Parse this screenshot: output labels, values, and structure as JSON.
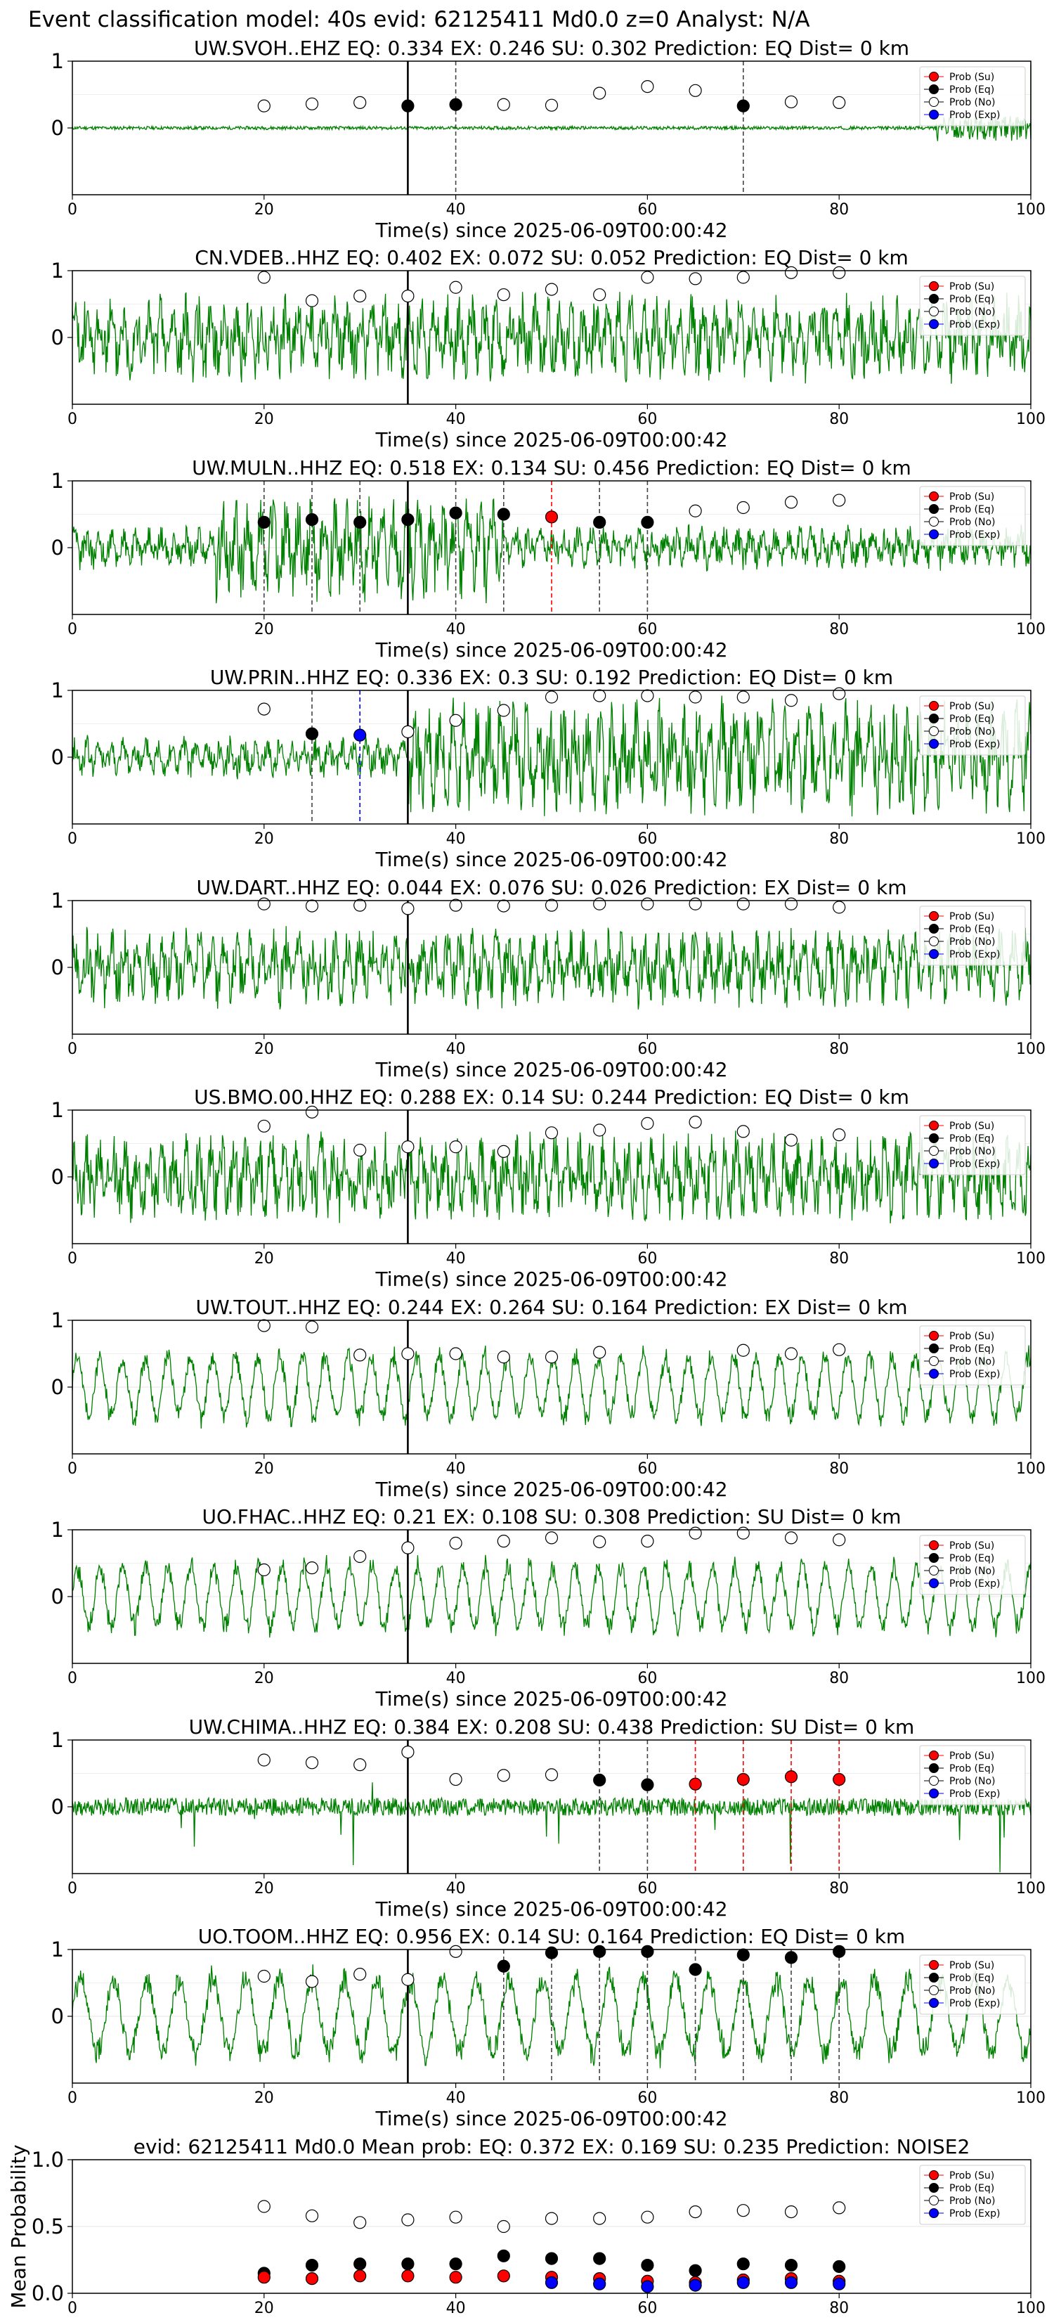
{
  "figure_title": "Event classification model: 40s evid: 62125411 Md0.0 z=0 Analyst: N/A",
  "legend": [
    {
      "label": "Prob (Su)",
      "color": "#ff0000",
      "hollow": false
    },
    {
      "label": "Prob (Eq)",
      "color": "#000000",
      "hollow": false
    },
    {
      "label": "Prob (No)",
      "color": "#ffffff",
      "hollow": true
    },
    {
      "label": "Prob (Exp)",
      "color": "#0000ff",
      "hollow": false
    }
  ],
  "colors": {
    "waveform": "#008000",
    "su_line": "#ff0000",
    "eq_line": "#000000",
    "exp_line": "#0000ff",
    "marker_edge": "#000000"
  },
  "chart_data": [
    {
      "type": "line",
      "title": "UW.SVOH..EHZ   EQ: 0.334  EX: 0.246  SU: 0.302   Prediction: EQ    Dist= 0 km",
      "xlabel": "Time(s) since 2025-06-09T00:00:42",
      "ylabel": "",
      "xlim": [
        0,
        100
      ],
      "ylim": [
        -1,
        1
      ],
      "xticks": [
        0,
        20,
        40,
        60,
        80,
        100
      ],
      "yticks": [
        0,
        1
      ],
      "grid": "y",
      "legend": "right",
      "pick_time": 35,
      "waveform": {
        "amp": 0.05,
        "seed": 11,
        "style": "quiet",
        "end_spike": true
      },
      "eq_lines": [
        40,
        70
      ],
      "su_lines": [],
      "exp_lines": [],
      "no_points": [
        [
          20,
          0.33
        ],
        [
          25,
          0.36
        ],
        [
          30,
          0.38
        ],
        [
          45,
          0.35
        ],
        [
          50,
          0.34
        ],
        [
          55,
          0.52
        ],
        [
          60,
          0.62
        ],
        [
          65,
          0.56
        ],
        [
          75,
          0.39
        ],
        [
          80,
          0.38
        ]
      ],
      "eq_points": [
        [
          35,
          0.33
        ],
        [
          40,
          0.35
        ],
        [
          70,
          0.33
        ]
      ],
      "su_points": [],
      "exp_points": []
    },
    {
      "type": "line",
      "title": "CN.VDEB..HHZ   EQ: 0.402  EX: 0.072  SU: 0.052   Prediction: EQ    Dist= 0 km",
      "xlabel": "Time(s) since 2025-06-09T00:00:42",
      "ylabel": "",
      "xlim": [
        0,
        100
      ],
      "ylim": [
        -1,
        1
      ],
      "xticks": [
        0,
        20,
        40,
        60,
        80,
        100
      ],
      "yticks": [
        0,
        1
      ],
      "grid": "y",
      "legend": "right",
      "pick_time": 35,
      "waveform": {
        "amp": 0.5,
        "seed": 23,
        "style": "dense"
      },
      "eq_lines": [],
      "su_lines": [],
      "exp_lines": [],
      "no_points": [
        [
          20,
          0.9
        ],
        [
          25,
          0.55
        ],
        [
          30,
          0.62
        ],
        [
          35,
          0.62
        ],
        [
          40,
          0.75
        ],
        [
          45,
          0.64
        ],
        [
          50,
          0.72
        ],
        [
          55,
          0.64
        ],
        [
          60,
          0.9
        ],
        [
          65,
          0.88
        ],
        [
          70,
          0.9
        ],
        [
          75,
          0.97
        ],
        [
          80,
          0.97
        ]
      ],
      "eq_points": [],
      "su_points": [],
      "exp_points": []
    },
    {
      "type": "line",
      "title": "UW.MULN..HHZ   EQ: 0.518  EX: 0.134  SU: 0.456   Prediction: EQ    Dist= 0 km",
      "xlabel": "Time(s) since 2025-06-09T00:00:42",
      "ylabel": "",
      "xlim": [
        0,
        100
      ],
      "ylim": [
        -1,
        1
      ],
      "xticks": [
        0,
        20,
        40,
        60,
        80,
        100
      ],
      "yticks": [
        0,
        1
      ],
      "grid": "y",
      "legend": "right",
      "pick_time": 35,
      "waveform": {
        "amp": 0.25,
        "seed": 37,
        "style": "burst"
      },
      "eq_lines": [
        20,
        25,
        30,
        35,
        40,
        45,
        55,
        60
      ],
      "su_lines": [
        50
      ],
      "exp_lines": [],
      "no_points": [
        [
          65,
          0.55
        ],
        [
          70,
          0.6
        ],
        [
          75,
          0.68
        ],
        [
          80,
          0.71
        ]
      ],
      "eq_points": [
        [
          20,
          0.38
        ],
        [
          25,
          0.42
        ],
        [
          30,
          0.38
        ],
        [
          35,
          0.42
        ],
        [
          40,
          0.52
        ],
        [
          45,
          0.5
        ],
        [
          55,
          0.38
        ],
        [
          60,
          0.38
        ]
      ],
      "su_points": [
        [
          50,
          0.46
        ]
      ],
      "exp_points": []
    },
    {
      "type": "line",
      "title": "UW.PRIN..HHZ   EQ: 0.336  EX: 0.3  SU: 0.192   Prediction: EQ    Dist= 0 km",
      "xlabel": "Time(s) since 2025-06-09T00:00:42",
      "ylabel": "",
      "xlim": [
        0,
        100
      ],
      "ylim": [
        -1,
        1
      ],
      "xticks": [
        0,
        20,
        40,
        60,
        80,
        100
      ],
      "yticks": [
        0,
        1
      ],
      "grid": "y",
      "legend": "right",
      "pick_time": 35,
      "waveform": {
        "amp": 0.3,
        "seed": 41,
        "style": "grow"
      },
      "eq_lines": [
        25
      ],
      "su_lines": [],
      "exp_lines": [
        30
      ],
      "no_points": [
        [
          20,
          0.72
        ],
        [
          35,
          0.38
        ],
        [
          40,
          0.55
        ],
        [
          45,
          0.7
        ],
        [
          50,
          0.9
        ],
        [
          55,
          0.92
        ],
        [
          60,
          0.92
        ],
        [
          65,
          0.9
        ],
        [
          70,
          0.9
        ],
        [
          75,
          0.85
        ],
        [
          80,
          0.95
        ]
      ],
      "eq_points": [
        [
          25,
          0.35
        ]
      ],
      "su_points": [],
      "exp_points": [
        [
          30,
          0.33
        ]
      ]
    },
    {
      "type": "line",
      "title": "UW.DART..HHZ   EQ: 0.044  EX: 0.076  SU: 0.026   Prediction: EX    Dist= 0 km",
      "xlabel": "Time(s) since 2025-06-09T00:00:42",
      "ylabel": "",
      "xlim": [
        0,
        100
      ],
      "ylim": [
        -1,
        1
      ],
      "xticks": [
        0,
        20,
        40,
        60,
        80,
        100
      ],
      "yticks": [
        0,
        1
      ],
      "grid": "y",
      "legend": "right",
      "pick_time": 35,
      "waveform": {
        "amp": 0.45,
        "seed": 53,
        "style": "noise"
      },
      "eq_lines": [],
      "su_lines": [],
      "exp_lines": [],
      "no_points": [
        [
          20,
          0.95
        ],
        [
          25,
          0.92
        ],
        [
          30,
          0.93
        ],
        [
          35,
          0.88
        ],
        [
          40,
          0.93
        ],
        [
          45,
          0.92
        ],
        [
          50,
          0.93
        ],
        [
          55,
          0.95
        ],
        [
          60,
          0.95
        ],
        [
          65,
          0.95
        ],
        [
          70,
          0.95
        ],
        [
          75,
          0.95
        ],
        [
          80,
          0.9
        ]
      ],
      "eq_points": [],
      "su_points": [],
      "exp_points": []
    },
    {
      "type": "line",
      "title": "US.BMO.00.HHZ   EQ: 0.288  EX: 0.14  SU: 0.244   Prediction: EQ    Dist= 0 km",
      "xlabel": "Time(s) since 2025-06-09T00:00:42",
      "ylabel": "",
      "xlim": [
        0,
        100
      ],
      "ylim": [
        -1,
        1
      ],
      "xticks": [
        0,
        20,
        40,
        60,
        80,
        100
      ],
      "yticks": [
        0,
        1
      ],
      "grid": "y",
      "legend": "right",
      "pick_time": 35,
      "waveform": {
        "amp": 0.5,
        "seed": 67,
        "style": "dense"
      },
      "eq_lines": [],
      "su_lines": [],
      "exp_lines": [],
      "no_points": [
        [
          20,
          0.76
        ],
        [
          25,
          0.97
        ],
        [
          30,
          0.4
        ],
        [
          35,
          0.45
        ],
        [
          40,
          0.45
        ],
        [
          45,
          0.38
        ],
        [
          50,
          0.66
        ],
        [
          55,
          0.7
        ],
        [
          60,
          0.8
        ],
        [
          65,
          0.82
        ],
        [
          70,
          0.68
        ],
        [
          75,
          0.55
        ],
        [
          80,
          0.63
        ]
      ],
      "eq_points": [],
      "su_points": [],
      "exp_points": []
    },
    {
      "type": "line",
      "title": "UW.TOUT..HHZ   EQ: 0.244  EX: 0.264  SU: 0.164   Prediction: EX    Dist= 0 km",
      "xlabel": "Time(s) since 2025-06-09T00:00:42",
      "ylabel": "",
      "xlim": [
        0,
        100
      ],
      "ylim": [
        -1,
        1
      ],
      "xticks": [
        0,
        20,
        40,
        60,
        80,
        100
      ],
      "yticks": [
        0,
        1
      ],
      "grid": "y",
      "legend": "right",
      "pick_time": 35,
      "waveform": {
        "amp": 0.45,
        "seed": 71,
        "style": "wavy"
      },
      "eq_lines": [],
      "su_lines": [],
      "exp_lines": [],
      "no_points": [
        [
          20,
          0.92
        ],
        [
          25,
          0.9
        ],
        [
          30,
          0.48
        ],
        [
          35,
          0.5
        ],
        [
          40,
          0.5
        ],
        [
          45,
          0.45
        ],
        [
          50,
          0.45
        ],
        [
          55,
          0.52
        ],
        [
          70,
          0.55
        ],
        [
          75,
          0.5
        ],
        [
          80,
          0.56
        ]
      ],
      "eq_points": [],
      "su_points": [],
      "exp_points": []
    },
    {
      "type": "line",
      "title": "UO.FHAC..HHZ   EQ: 0.21  EX: 0.108  SU: 0.308    Prediction: SU    Dist= 0 km",
      "xlabel": "Time(s) since 2025-06-09T00:00:42",
      "ylabel": "",
      "xlim": [
        0,
        100
      ],
      "ylim": [
        -1,
        1
      ],
      "xticks": [
        0,
        20,
        40,
        60,
        80,
        100
      ],
      "yticks": [
        0,
        1
      ],
      "grid": "y",
      "legend": "right",
      "pick_time": 35,
      "waveform": {
        "amp": 0.45,
        "seed": 83,
        "style": "wavy"
      },
      "eq_lines": [],
      "su_lines": [],
      "exp_lines": [],
      "no_points": [
        [
          20,
          0.4
        ],
        [
          25,
          0.43
        ],
        [
          30,
          0.6
        ],
        [
          35,
          0.73
        ],
        [
          40,
          0.8
        ],
        [
          45,
          0.83
        ],
        [
          50,
          0.88
        ],
        [
          55,
          0.82
        ],
        [
          60,
          0.83
        ],
        [
          65,
          0.95
        ],
        [
          70,
          0.95
        ],
        [
          75,
          0.88
        ],
        [
          80,
          0.85
        ]
      ],
      "eq_points": [],
      "su_points": [],
      "exp_points": []
    },
    {
      "type": "line",
      "title": "UW.CHIMA..HHZ   EQ: 0.384  EX: 0.208  SU: 0.438    Prediction: SU    Dist= 0 km",
      "xlabel": "Time(s) since 2025-06-09T00:00:42",
      "ylabel": "",
      "xlim": [
        0,
        100
      ],
      "ylim": [
        -1,
        1
      ],
      "xticks": [
        0,
        20,
        40,
        60,
        80,
        100
      ],
      "yticks": [
        0,
        1
      ],
      "grid": "y",
      "legend": "right",
      "pick_time": 35,
      "waveform": {
        "amp": 0.18,
        "seed": 97,
        "style": "spiky"
      },
      "eq_lines": [
        55,
        60
      ],
      "su_lines": [
        65,
        70,
        75,
        80
      ],
      "exp_lines": [],
      "no_points": [
        [
          20,
          0.7
        ],
        [
          25,
          0.66
        ],
        [
          30,
          0.63
        ],
        [
          35,
          0.82
        ],
        [
          40,
          0.41
        ],
        [
          45,
          0.47
        ],
        [
          50,
          0.48
        ]
      ],
      "eq_points": [
        [
          55,
          0.4
        ],
        [
          60,
          0.33
        ]
      ],
      "su_points": [
        [
          65,
          0.34
        ],
        [
          70,
          0.41
        ],
        [
          75,
          0.45
        ],
        [
          80,
          0.41
        ]
      ],
      "exp_points": []
    },
    {
      "type": "line",
      "title": "UO.TOOM..HHZ   EQ: 0.956  EX: 0.14  SU: 0.164   Prediction: EQ    Dist= 0 km",
      "xlabel": "Time(s) since 2025-06-09T00:00:42",
      "ylabel": "",
      "xlim": [
        0,
        100
      ],
      "ylim": [
        -1,
        1
      ],
      "xticks": [
        0,
        20,
        40,
        60,
        80,
        100
      ],
      "yticks": [
        0,
        1
      ],
      "grid": "y",
      "legend": "right",
      "pick_time": 35,
      "waveform": {
        "amp": 0.55,
        "seed": 101,
        "style": "slow"
      },
      "eq_lines": [
        45,
        50,
        55,
        60,
        65,
        70,
        75,
        80
      ],
      "su_lines": [],
      "exp_lines": [],
      "no_points": [
        [
          20,
          0.6
        ],
        [
          25,
          0.52
        ],
        [
          30,
          0.63
        ],
        [
          35,
          0.55
        ],
        [
          40,
          0.97
        ]
      ],
      "eq_points": [
        [
          45,
          0.75
        ],
        [
          50,
          0.95
        ],
        [
          55,
          0.97
        ],
        [
          60,
          0.97
        ],
        [
          65,
          0.7
        ],
        [
          70,
          0.92
        ],
        [
          75,
          0.88
        ],
        [
          80,
          0.97
        ]
      ],
      "su_points": [],
      "exp_points": []
    },
    {
      "type": "scatter",
      "title": "evid: 62125411  Md0.0   Mean prob:   EQ: 0.372  EX: 0.169  SU: 0.235   Prediction: NOISE2",
      "xlabel": "",
      "ylabel": "Mean Probability",
      "xlim": [
        0,
        100
      ],
      "ylim": [
        0,
        1
      ],
      "xticks": [
        0,
        20,
        40,
        60,
        80,
        100
      ],
      "yticks": [
        0.0,
        0.5,
        1.0
      ],
      "ytick_labels": [
        "0.0",
        "0.5",
        "1.0"
      ],
      "grid": "y",
      "legend": "right",
      "no_points": [
        [
          20,
          0.65
        ],
        [
          25,
          0.58
        ],
        [
          30,
          0.53
        ],
        [
          35,
          0.55
        ],
        [
          40,
          0.57
        ],
        [
          45,
          0.5
        ],
        [
          50,
          0.56
        ],
        [
          55,
          0.56
        ],
        [
          60,
          0.57
        ],
        [
          65,
          0.61
        ],
        [
          70,
          0.62
        ],
        [
          75,
          0.61
        ],
        [
          80,
          0.64
        ]
      ],
      "eq_points": [
        [
          20,
          0.15
        ],
        [
          25,
          0.21
        ],
        [
          30,
          0.22
        ],
        [
          35,
          0.22
        ],
        [
          40,
          0.22
        ],
        [
          45,
          0.28
        ],
        [
          50,
          0.26
        ],
        [
          55,
          0.26
        ],
        [
          60,
          0.21
        ],
        [
          65,
          0.17
        ],
        [
          70,
          0.22
        ],
        [
          75,
          0.21
        ],
        [
          80,
          0.2
        ]
      ],
      "su_points": [
        [
          20,
          0.12
        ],
        [
          25,
          0.11
        ],
        [
          30,
          0.13
        ],
        [
          35,
          0.13
        ],
        [
          40,
          0.12
        ],
        [
          45,
          0.13
        ],
        [
          50,
          0.12
        ],
        [
          55,
          0.11
        ],
        [
          60,
          0.09
        ],
        [
          65,
          0.08
        ],
        [
          70,
          0.1
        ],
        [
          75,
          0.11
        ],
        [
          80,
          0.09
        ]
      ],
      "exp_points": [
        [
          50,
          0.08
        ],
        [
          55,
          0.07
        ],
        [
          60,
          0.05
        ],
        [
          65,
          0.06
        ],
        [
          70,
          0.08
        ],
        [
          75,
          0.08
        ],
        [
          80,
          0.07
        ]
      ]
    }
  ]
}
